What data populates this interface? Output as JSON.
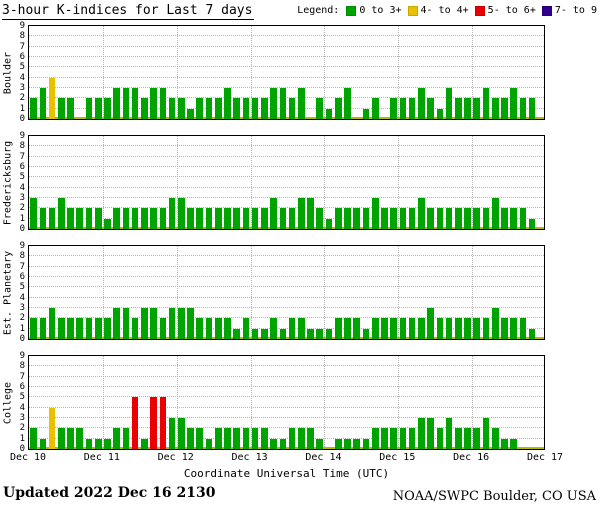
{
  "header": {
    "title": "3-hour K-indices for Last 7 days"
  },
  "legend": {
    "label": "Legend:",
    "items": [
      {
        "label": "0 to 3+",
        "color": "#00a400"
      },
      {
        "label": "4- to 4+",
        "color": "#e8c100"
      },
      {
        "label": "5- to 6+",
        "color": "#ea0000"
      },
      {
        "label": "7- to 9",
        "color": "#30008c"
      }
    ]
  },
  "chart_data": {
    "type": "bar",
    "title": "3-hour K-indices for Last 7 days",
    "xlabel": "Coordinate Universal Time (UTC)",
    "x_tick_labels": [
      "Dec 10",
      "Dec 11",
      "Dec 12",
      "Dec 13",
      "Dec 14",
      "Dec 15",
      "Dec 16",
      "Dec 17"
    ],
    "ylim": [
      0,
      9
    ],
    "days": 7,
    "bars_per_day": 8,
    "grid": "dotted",
    "legend_position": "top-right",
    "color_rule": "green: K 0 to 3+, yellow: K 4- to 4+, red: K 5- to 6+, purple: K 7- to 9",
    "panels": [
      {
        "station": "Boulder",
        "values": [
          2,
          3,
          4,
          2,
          2,
          0,
          2,
          2,
          2,
          3,
          3,
          3,
          2,
          3,
          3,
          2,
          2,
          1,
          2,
          2,
          2,
          3,
          2,
          2,
          2,
          2,
          3,
          3,
          2,
          3,
          0,
          2,
          1,
          2,
          3,
          0,
          1,
          2,
          0,
          2,
          2,
          2,
          3,
          2,
          1,
          3,
          2,
          2,
          2,
          3,
          2,
          2,
          3,
          2,
          2
        ]
      },
      {
        "station": "Fredericksburg",
        "values": [
          3,
          2,
          2,
          3,
          2,
          2,
          2,
          2,
          1,
          2,
          2,
          2,
          2,
          2,
          2,
          3,
          3,
          2,
          2,
          2,
          2,
          2,
          2,
          2,
          2,
          2,
          3,
          2,
          2,
          3,
          3,
          2,
          1,
          2,
          2,
          2,
          2,
          3,
          2,
          2,
          2,
          2,
          3,
          2,
          2,
          2,
          2,
          2,
          2,
          2,
          3,
          2,
          2,
          2,
          1
        ]
      },
      {
        "station": "Est. Planetary",
        "values": [
          2,
          2,
          3,
          2,
          2,
          2,
          2,
          2,
          2,
          3,
          3,
          2,
          3,
          3,
          2,
          3,
          3,
          3,
          2,
          2,
          2,
          2,
          1,
          2,
          1,
          1,
          2,
          1,
          2,
          2,
          1,
          1,
          1,
          2,
          2,
          2,
          1,
          2,
          2,
          2,
          2,
          2,
          2,
          3,
          2,
          2,
          2,
          2,
          2,
          2,
          3,
          2,
          2,
          2,
          1
        ]
      },
      {
        "station": "College",
        "values": [
          2,
          1,
          4,
          2,
          2,
          2,
          1,
          1,
          1,
          2,
          2,
          5,
          1,
          5,
          5,
          3,
          3,
          2,
          2,
          1,
          2,
          2,
          2,
          2,
          2,
          2,
          1,
          1,
          2,
          2,
          2,
          1,
          0,
          1,
          1,
          1,
          1,
          2,
          2,
          2,
          2,
          2,
          3,
          3,
          2,
          3,
          2,
          2,
          2,
          3,
          2,
          1,
          1,
          0,
          0
        ]
      }
    ]
  },
  "footer": {
    "updated": "Updated 2022 Dec 16 2130",
    "source": "NOAA/SWPC Boulder, CO USA"
  },
  "colors": {
    "green": "#00a400",
    "yellow": "#e8c100",
    "red": "#ea0000",
    "purple": "#30008c",
    "grid": "#b4b4b4",
    "baseline": "#b8b800",
    "axis": "#000000"
  }
}
